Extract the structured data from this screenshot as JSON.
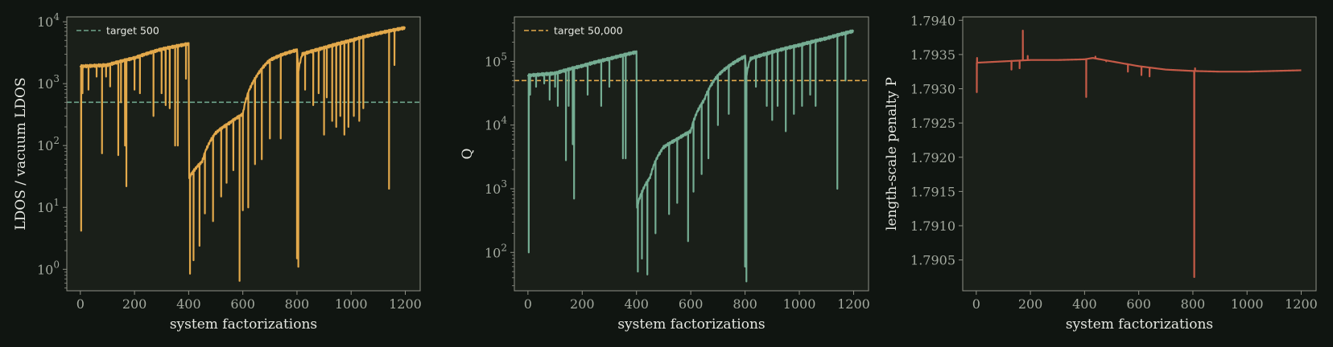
{
  "chart_data": [
    {
      "type": "line",
      "xlabel": "system factorizations",
      "ylabel": "LDOS / vacuum LDOS",
      "yscale": "log",
      "xlim": [
        -50,
        1255
      ],
      "ylim": [
        0.45,
        12000
      ],
      "xticks": [
        0,
        200,
        400,
        600,
        800,
        1000,
        1200
      ],
      "yticks": [
        1,
        10,
        100,
        1000,
        10000
      ],
      "ytick_labels": [
        {
          "base": "10",
          "exp": "0"
        },
        {
          "base": "10",
          "exp": "1"
        },
        {
          "base": "10",
          "exp": "2"
        },
        {
          "base": "10",
          "exp": "3"
        },
        {
          "base": "10",
          "exp": "4"
        }
      ],
      "legend": {
        "position": "top-left",
        "entries": [
          {
            "label": "target 500",
            "style": "dashed",
            "color": "#6fa58c"
          }
        ]
      },
      "hline": {
        "value": 500,
        "color": "#6fa58c",
        "style": "dashed"
      },
      "series": [
        {
          "color": "#e3a94b",
          "baseline": [
            [
              0,
              1900
            ],
            [
              100,
              2000
            ],
            [
              200,
              2600
            ],
            [
              300,
              3600
            ],
            [
              400,
              4400
            ],
            [
              401,
              30
            ],
            [
              450,
              55
            ],
            [
              500,
              160
            ],
            [
              550,
              230
            ],
            [
              600,
              320
            ],
            [
              650,
              1300
            ],
            [
              700,
              2400
            ],
            [
              750,
              3000
            ],
            [
              800,
              3500
            ],
            [
              805,
              1600
            ],
            [
              820,
              3000
            ],
            [
              900,
              3800
            ],
            [
              1000,
              5000
            ],
            [
              1100,
              6500
            ],
            [
              1200,
              8000
            ]
          ],
          "dips": [
            [
              3,
              4.2
            ],
            [
              8,
              700
            ],
            [
              30,
              800
            ],
            [
              60,
              1300
            ],
            [
              80,
              75
            ],
            [
              95,
              1300
            ],
            [
              110,
              900
            ],
            [
              140,
              70
            ],
            [
              150,
              500
            ],
            [
              165,
              100
            ],
            [
              170,
              22
            ],
            [
              200,
              800
            ],
            [
              220,
              700
            ],
            [
              270,
              300
            ],
            [
              300,
              700
            ],
            [
              315,
              450
            ],
            [
              330,
              400
            ],
            [
              350,
              100
            ],
            [
              360,
              100
            ],
            [
              390,
              1200
            ],
            [
              405,
              0.85
            ],
            [
              418,
              1.4
            ],
            [
              440,
              2.4
            ],
            [
              460,
              8
            ],
            [
              490,
              6
            ],
            [
              520,
              15
            ],
            [
              540,
              25
            ],
            [
              565,
              40
            ],
            [
              588,
              0.65
            ],
            [
              600,
              9
            ],
            [
              620,
              10
            ],
            [
              645,
              50
            ],
            [
              670,
              60
            ],
            [
              700,
              130
            ],
            [
              740,
              130
            ],
            [
              800,
              1.5
            ],
            [
              805,
              1.1
            ],
            [
              830,
              800
            ],
            [
              860,
              450
            ],
            [
              880,
              700
            ],
            [
              900,
              150
            ],
            [
              910,
              600
            ],
            [
              930,
              250
            ],
            [
              945,
              200
            ],
            [
              960,
              300
            ],
            [
              975,
              150
            ],
            [
              990,
              200
            ],
            [
              1010,
              300
            ],
            [
              1030,
              250
            ],
            [
              1045,
              400
            ],
            [
              1140,
              20
            ],
            [
              1160,
              2000
            ]
          ]
        }
      ]
    },
    {
      "type": "line",
      "xlabel": "system factorizations",
      "ylabel": "Q",
      "yscale": "log",
      "xlim": [
        -50,
        1255
      ],
      "ylim": [
        25,
        500000
      ],
      "xticks": [
        0,
        200,
        400,
        600,
        800,
        1000,
        1200
      ],
      "yticks": [
        100,
        1000,
        10000,
        100000
      ],
      "ytick_labels": [
        {
          "base": "10",
          "exp": "2"
        },
        {
          "base": "10",
          "exp": "3"
        },
        {
          "base": "10",
          "exp": "4"
        },
        {
          "base": "10",
          "exp": "5"
        }
      ],
      "legend": {
        "position": "top-left",
        "entries": [
          {
            "label": "target 50,000",
            "style": "dashed",
            "color": "#e3a94b"
          }
        ]
      },
      "hline": {
        "value": 50000,
        "color": "#e3a94b",
        "style": "dashed"
      },
      "series": [
        {
          "color": "#75ad93",
          "baseline": [
            [
              0,
              60000
            ],
            [
              100,
              65000
            ],
            [
              200,
              85000
            ],
            [
              300,
              110000
            ],
            [
              400,
              140000
            ],
            [
              401,
              500
            ],
            [
              450,
              1500
            ],
            [
              500,
              4500
            ],
            [
              550,
              6000
            ],
            [
              600,
              8000
            ],
            [
              650,
              25000
            ],
            [
              700,
              60000
            ],
            [
              750,
              90000
            ],
            [
              800,
              120000
            ],
            [
              805,
              60000
            ],
            [
              820,
              110000
            ],
            [
              900,
              140000
            ],
            [
              1000,
              180000
            ],
            [
              1100,
              230000
            ],
            [
              1200,
              300000
            ]
          ],
          "dips": [
            [
              3,
              100
            ],
            [
              8,
              30000
            ],
            [
              30,
              40000
            ],
            [
              60,
              45000
            ],
            [
              80,
              25000
            ],
            [
              100,
              40000
            ],
            [
              110,
              20000
            ],
            [
              140,
              2800
            ],
            [
              150,
              20000
            ],
            [
              165,
              5000
            ],
            [
              170,
              700
            ],
            [
              220,
              30000
            ],
            [
              270,
              20000
            ],
            [
              300,
              40000
            ],
            [
              350,
              3000
            ],
            [
              360,
              3000
            ],
            [
              405,
              50
            ],
            [
              420,
              80
            ],
            [
              440,
              45
            ],
            [
              470,
              200
            ],
            [
              520,
              400
            ],
            [
              550,
              600
            ],
            [
              590,
              150
            ],
            [
              610,
              900
            ],
            [
              640,
              1700
            ],
            [
              665,
              3000
            ],
            [
              700,
              10000
            ],
            [
              740,
              15000
            ],
            [
              800,
              60
            ],
            [
              805,
              35
            ],
            [
              840,
              40000
            ],
            [
              880,
              20000
            ],
            [
              900,
              12000
            ],
            [
              920,
              20000
            ],
            [
              950,
              8000
            ],
            [
              980,
              15000
            ],
            [
              1010,
              20000
            ],
            [
              1040,
              30000
            ],
            [
              1060,
              20000
            ],
            [
              1140,
              1000
            ],
            [
              1170,
              50000
            ]
          ]
        }
      ]
    },
    {
      "type": "line",
      "xlabel": "system factorizations",
      "ylabel": "length-scale penalty P",
      "yscale": "linear",
      "xlim": [
        -50,
        1255
      ],
      "ylim": [
        1.79005,
        1.79405
      ],
      "xticks": [
        0,
        200,
        400,
        600,
        800,
        1000,
        1200
      ],
      "yticks": [
        1.7905,
        1.791,
        1.7915,
        1.792,
        1.7925,
        1.793,
        1.7935,
        1.794
      ],
      "ytick_labels": [
        "1.7905",
        "1.7910",
        "1.7915",
        "1.7920",
        "1.7925",
        "1.7930",
        "1.7935",
        "1.7940"
      ],
      "series": [
        {
          "color": "#c45a47",
          "baseline": [
            [
              0,
              1.79338
            ],
            [
              100,
              1.7934
            ],
            [
              200,
              1.79342
            ],
            [
              300,
              1.79342
            ],
            [
              400,
              1.79343
            ],
            [
              430,
              1.79345
            ],
            [
              500,
              1.7934
            ],
            [
              600,
              1.79333
            ],
            [
              700,
              1.79328
            ],
            [
              800,
              1.79326
            ],
            [
              900,
              1.79325
            ],
            [
              1000,
              1.79325
            ],
            [
              1100,
              1.79326
            ],
            [
              1200,
              1.79327
            ]
          ],
          "dips": [
            [
              2,
              1.79295
            ],
            [
              3,
              1.79345
            ],
            [
              130,
              1.79328
            ],
            [
              160,
              1.7933
            ],
            [
              172,
              1.79385
            ],
            [
              190,
              1.79348
            ],
            [
              406,
              1.79288
            ],
            [
              440,
              1.79347
            ],
            [
              480,
              1.7934
            ],
            [
              560,
              1.79325
            ],
            [
              610,
              1.7932
            ],
            [
              640,
              1.79318
            ],
            [
              805,
              1.79025
            ],
            [
              808,
              1.7933
            ]
          ]
        }
      ]
    }
  ]
}
